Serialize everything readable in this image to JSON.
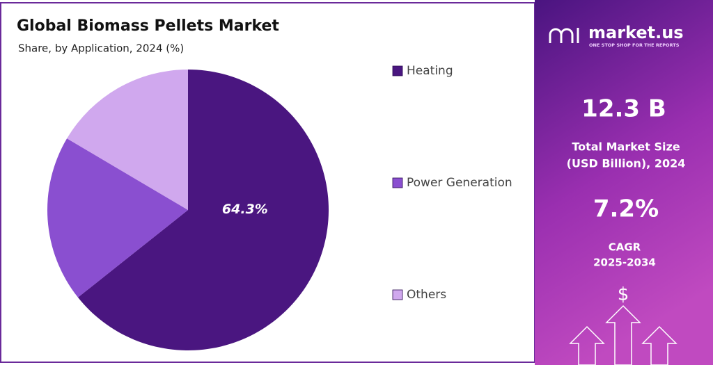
{
  "chart_data": {
    "type": "pie",
    "title": "Global Biomass Pellets Market",
    "subtitle": "Share, by Application, 2024 (%)",
    "categories": [
      "Heating",
      "Power Generation",
      "Others"
    ],
    "values": [
      64.3,
      19.2,
      16.5
    ],
    "value_labels": [
      "64.3%",
      null,
      null
    ],
    "colors": [
      "#4a1680",
      "#8a4fd0",
      "#d0a8ee"
    ]
  },
  "panel": {
    "brand": "market.us",
    "tagline": "ONE STOP SHOP FOR THE REPORTS",
    "market_size": "12.3 B",
    "market_size_label": [
      "Total Market Size",
      "(USD Billion), 2024"
    ],
    "cagr": "7.2%",
    "cagr_label": [
      "CAGR",
      "2025-2034"
    ],
    "icon": "$"
  }
}
